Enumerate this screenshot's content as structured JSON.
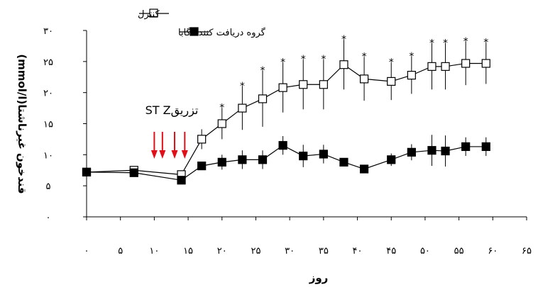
{
  "chart_data": {
    "type": "line",
    "xlabel": "روز",
    "ylabel": "قندخون غیرناشتا(mmol/l)",
    "xlim": [
      0,
      65
    ],
    "ylim": [
      0,
      30
    ],
    "x_ticks": [
      0,
      5,
      10,
      15,
      20,
      25,
      30,
      35,
      40,
      45,
      50,
      55,
      60,
      65
    ],
    "x_tick_labels": [
      "۰",
      "۵",
      "۱۰",
      "۱۵",
      "۲۰",
      "۲۵",
      "۳۰",
      "۳۵",
      "۴۰",
      "۴۵",
      "۵۰",
      "۵۵",
      "۶۰",
      "۶۵"
    ],
    "y_ticks": [
      0,
      5,
      10,
      15,
      20,
      25,
      30
    ],
    "y_tick_labels": [
      "۰",
      "۵",
      "۱۰",
      "۱۵",
      "۲۰",
      "۲۵",
      "۳۰"
    ],
    "grid": false,
    "legend_position": "top-left",
    "series": [
      {
        "name": "کنترل",
        "marker": "open-square",
        "color": "#000000",
        "x": [
          0,
          7,
          14,
          17,
          20,
          23,
          26,
          29,
          32,
          35,
          38,
          41,
          45,
          48,
          51,
          53,
          56,
          59
        ],
        "y": [
          7.2,
          7.5,
          6.8,
          12.5,
          15.0,
          17.5,
          19.0,
          20.8,
          21.3,
          21.3,
          24.5,
          22.2,
          21.8,
          22.8,
          24.2,
          24.2,
          24.7,
          24.7
        ],
        "err": [
          0,
          0,
          0,
          1.6,
          2.5,
          3.5,
          4.5,
          4.0,
          4.0,
          4.0,
          4.0,
          3.5,
          3.0,
          3.0,
          3.7,
          3.7,
          3.5,
          3.3
        ]
      },
      {
        "name": "گروه دریافت کننده گابا",
        "marker": "filled-square",
        "color": "#000000",
        "x": [
          0,
          7,
          14,
          17,
          20,
          23,
          26,
          29,
          32,
          35,
          38,
          41,
          45,
          48,
          51,
          53,
          56,
          59
        ],
        "y": [
          7.2,
          7.1,
          5.9,
          8.2,
          8.8,
          9.2,
          9.2,
          11.5,
          9.8,
          10.1,
          8.8,
          7.7,
          9.2,
          10.4,
          10.7,
          10.6,
          11.3,
          11.3
        ],
        "err": [
          0,
          0,
          0,
          0.6,
          1.2,
          1.5,
          1.5,
          1.5,
          1.8,
          1.5,
          0.5,
          0.5,
          1.0,
          1.3,
          2.5,
          2.5,
          1.5,
          1.5
        ]
      }
    ],
    "significance_marker": "*",
    "significance_x": [
      20,
      23,
      26,
      29,
      32,
      35,
      38,
      41,
      45,
      48,
      51,
      53,
      56,
      59
    ],
    "annotation": {
      "label": "تزریقST Z",
      "arrow_x": [
        10,
        11.2,
        13,
        14.5
      ],
      "arrow_color": "#e0101a"
    }
  }
}
